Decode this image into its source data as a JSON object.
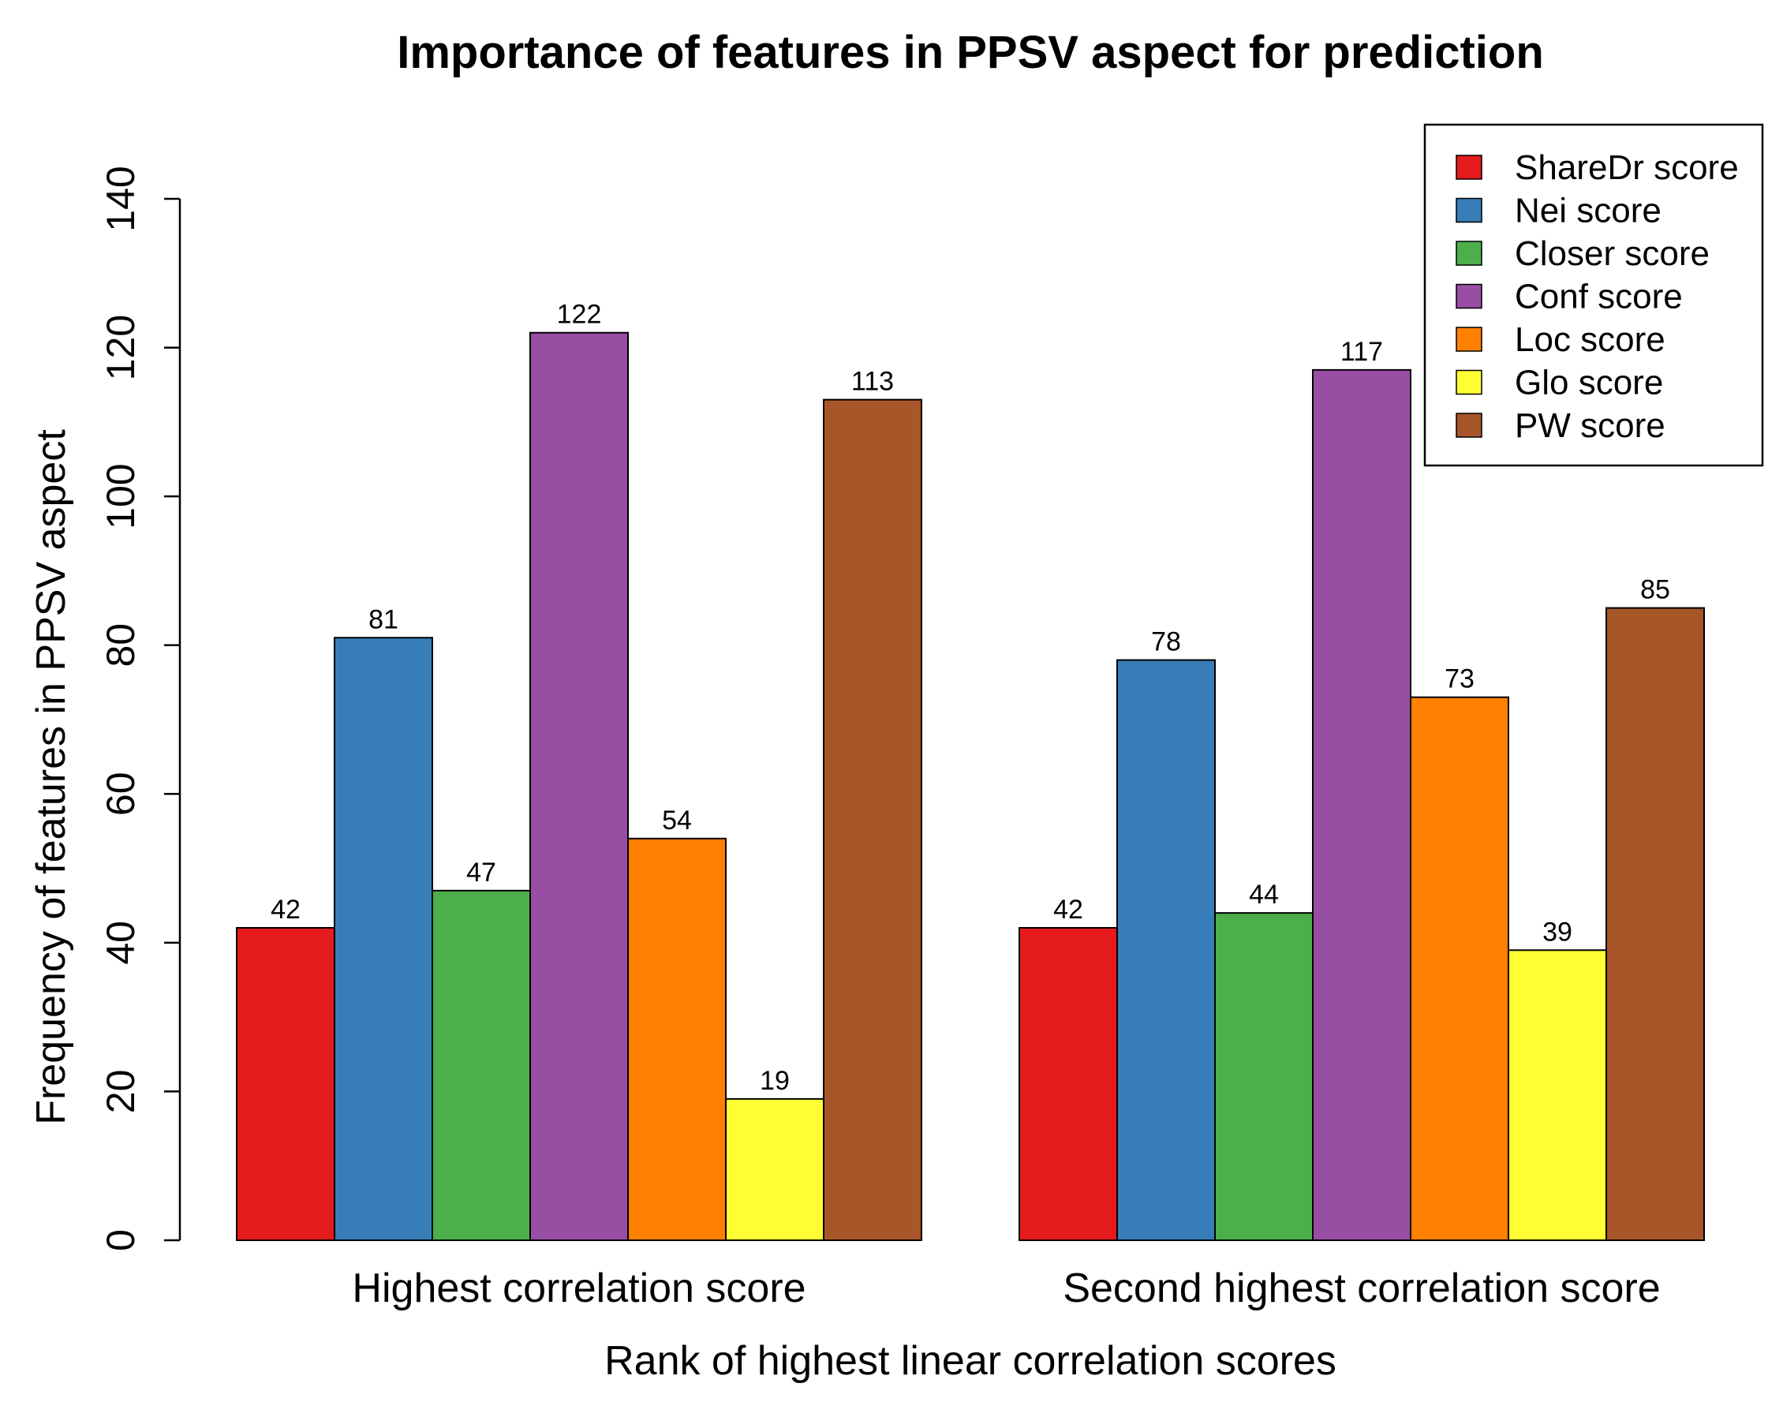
{
  "chart_data": {
    "type": "bar",
    "title": "Importance of features in PPSV aspect for prediction",
    "xlabel": "Rank of highest linear correlation scores",
    "ylabel": "Frequency of features in PPSV aspect",
    "ylim": [
      0,
      140
    ],
    "yticks": [
      0,
      20,
      40,
      60,
      80,
      100,
      120,
      140
    ],
    "grid": false,
    "legend_position": "top-right",
    "categories": [
      "Highest correlation score",
      "Second highest correlation score"
    ],
    "series": [
      {
        "name": "ShareDr score",
        "color": "#e41a1c",
        "values": [
          42,
          42
        ]
      },
      {
        "name": "Nei score",
        "color": "#377eb8",
        "values": [
          81,
          78
        ]
      },
      {
        "name": "Closer score",
        "color": "#4daf4a",
        "values": [
          47,
          44
        ]
      },
      {
        "name": "Conf score",
        "color": "#984ea3",
        "values": [
          122,
          117
        ]
      },
      {
        "name": "Loc score",
        "color": "#ff7f00",
        "values": [
          54,
          73
        ]
      },
      {
        "name": "Glo score",
        "color": "#ffff33",
        "values": [
          19,
          39
        ]
      },
      {
        "name": "PW score",
        "color": "#a65628",
        "values": [
          113,
          85
        ]
      }
    ]
  }
}
